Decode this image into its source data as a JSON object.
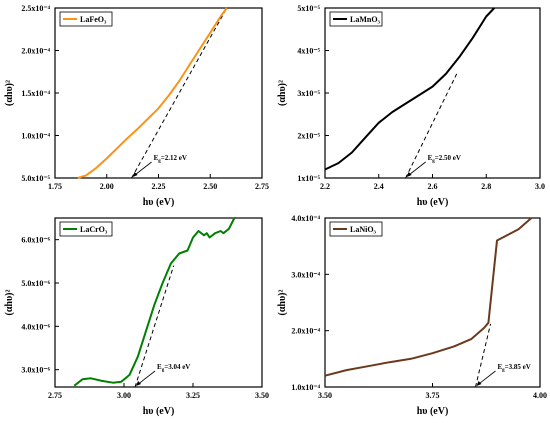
{
  "chart_data": [
    {
      "type": "line",
      "legend": "LaFeO₃",
      "xlabel": "hυ (eV)",
      "ylabel": "(αhυ)²",
      "xlim": [
        1.75,
        2.75
      ],
      "ylim": [
        5e-05,
        0.00025
      ],
      "xticks": [
        "1.75",
        "2.00",
        "2.25",
        "2.50",
        "2.75"
      ],
      "yticks": [
        "5.0x10⁻⁵",
        "1.0x10⁻⁴",
        "1.5x10⁻⁴",
        "2.0x10⁻⁴",
        "2.5x10⁻⁴"
      ],
      "color": "#f7941d",
      "series": [
        {
          "x": [
            1.86,
            1.9,
            1.95,
            2.0,
            2.05,
            2.1,
            2.15,
            2.2,
            2.25,
            2.3,
            2.35,
            2.4,
            2.45,
            2.5,
            2.55,
            2.58
          ],
          "y": [
            5e-05,
            5.3e-05,
            6.2e-05,
            7.3e-05,
            8.5e-05,
            9.7e-05,
            0.000108,
            0.00012,
            0.000132,
            0.000147,
            0.000164,
            0.000183,
            0.000202,
            0.000221,
            0.00024,
            0.00025
          ]
        }
      ],
      "fit": {
        "x": [
          2.12,
          2.58
        ],
        "y": [
          5e-05,
          0.00025
        ]
      },
      "annotation": {
        "text": "E",
        "sub": "g",
        "rest": "=2.12 eV",
        "at": [
          2.12,
          5e-05
        ]
      }
    },
    {
      "type": "line",
      "legend": "LaMnO₃",
      "xlabel": "hυ (eV)",
      "ylabel": "(αhυ)²",
      "xlim": [
        2.2,
        3.0
      ],
      "ylim": [
        1e-05,
        5e-05
      ],
      "xticks": [
        "2.2",
        "2.4",
        "2.6",
        "2.8",
        "3.0"
      ],
      "yticks": [
        "1x10⁻⁵",
        "2x10⁻⁵",
        "3x10⁻⁵",
        "4x10⁻⁵",
        "5x10⁻⁵"
      ],
      "color": "#000000",
      "series": [
        {
          "x": [
            2.2,
            2.25,
            2.3,
            2.35,
            2.4,
            2.45,
            2.5,
            2.55,
            2.6,
            2.65,
            2.7,
            2.75,
            2.8,
            2.83
          ],
          "y": [
            1.2e-05,
            1.35e-05,
            1.6e-05,
            1.95e-05,
            2.3e-05,
            2.55e-05,
            2.75e-05,
            2.95e-05,
            3.15e-05,
            3.45e-05,
            3.85e-05,
            4.3e-05,
            4.8e-05,
            5e-05
          ]
        }
      ],
      "fit": {
        "x": [
          2.5,
          2.69
        ],
        "y": [
          1e-05,
          3.45e-05
        ]
      },
      "annotation": {
        "text": "E",
        "sub": "g",
        "rest": "=2.50 eV",
        "at": [
          2.5,
          1e-05
        ]
      }
    },
    {
      "type": "line",
      "legend": "LaCrO₃",
      "xlabel": "hυ (eV)",
      "ylabel": "(αhυ)²",
      "xlim": [
        2.75,
        3.5
      ],
      "ylim": [
        2.6e-06,
        6.5e-06
      ],
      "xticks": [
        "2.75",
        "3.00",
        "3.25",
        "3.50"
      ],
      "yticks": [
        "3.0x10⁻⁶",
        "4.0x10⁻⁶",
        "5.0x10⁻⁶",
        "6.0x10⁻⁶"
      ],
      "color": "#008000",
      "series": [
        {
          "x": [
            2.82,
            2.85,
            2.88,
            2.92,
            2.96,
            2.99,
            3.02,
            3.05,
            3.08,
            3.11,
            3.14,
            3.17,
            3.2,
            3.23,
            3.25,
            3.27,
            3.29,
            3.3,
            3.31,
            3.33,
            3.35,
            3.36,
            3.38,
            3.4
          ],
          "y": [
            2.63e-06,
            2.78e-06,
            2.8e-06,
            2.74e-06,
            2.7e-06,
            2.72e-06,
            2.88e-06,
            3.3e-06,
            3.9e-06,
            4.5e-06,
            5e-06,
            5.45e-06,
            5.68e-06,
            5.75e-06,
            6.05e-06,
            6.2e-06,
            6.1e-06,
            6.15e-06,
            6.05e-06,
            6.15e-06,
            6.2e-06,
            6.15e-06,
            6.25e-06,
            6.5e-06
          ]
        }
      ],
      "fit": {
        "x": [
          3.04,
          3.18
        ],
        "y": [
          2.6e-06,
          5.4e-06
        ]
      },
      "annotation": {
        "text": "E",
        "sub": "g",
        "rest": "=3.04 eV",
        "at": [
          3.04,
          2.6e-06
        ]
      }
    },
    {
      "type": "line",
      "legend": "LaNiO₃",
      "xlabel": "hυ (eV)",
      "ylabel": "(αhυ)²",
      "xlim": [
        3.5,
        4.0
      ],
      "ylim": [
        0.0001,
        0.0004
      ],
      "xticks": [
        "3.50",
        "3.75",
        "4.00"
      ],
      "yticks": [
        "1.0x10⁻⁴",
        "2.0x10⁻⁴",
        "3.0x10⁻⁴",
        "4.0x10⁻⁴"
      ],
      "color": "#6b3a1e",
      "series": [
        {
          "x": [
            3.5,
            3.55,
            3.6,
            3.65,
            3.7,
            3.75,
            3.8,
            3.84,
            3.87,
            3.88,
            3.9,
            3.95,
            3.98
          ],
          "y": [
            0.00012,
            0.00013,
            0.000137,
            0.000144,
            0.00015,
            0.00016,
            0.000172,
            0.000185,
            0.000205,
            0.000214,
            0.00036,
            0.00038,
            0.0004
          ]
        }
      ],
      "fit": {
        "x": [
          3.85,
          3.885
        ],
        "y": [
          0.0001,
          0.000212
        ]
      },
      "annotation": {
        "text": "E",
        "sub": "g",
        "rest": "=3.85 eV",
        "at": [
          3.85,
          0.0001
        ]
      }
    }
  ]
}
